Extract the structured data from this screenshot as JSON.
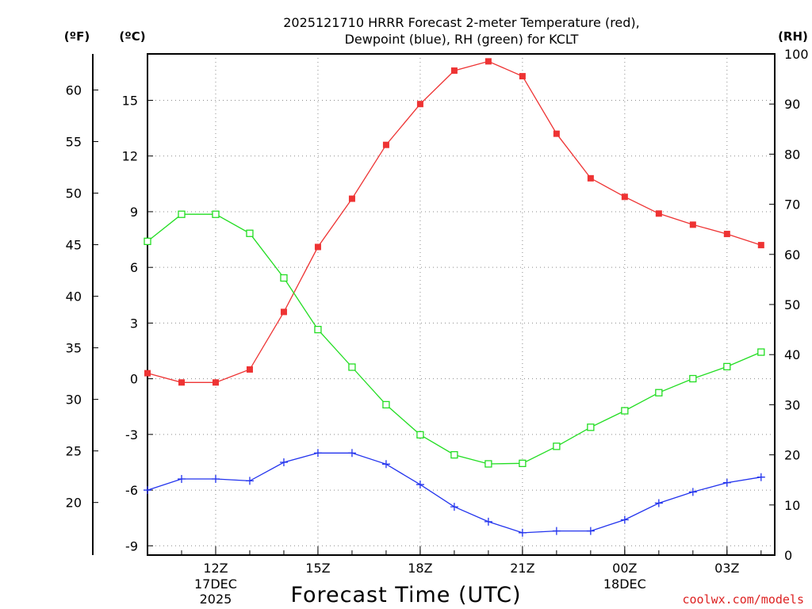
{
  "chart_data": {
    "type": "line",
    "title_line1": "2025121710 HRRR Forecast 2-meter Temperature (red),",
    "title_line2": "Dewpoint (blue), RH (green) for KCLT",
    "xlabel": "Forecast Time (UTC)",
    "credit": "coolwx.com/models",
    "left_outer_unit_label": "(ºF)",
    "left_inner_unit_label": "(ºC)",
    "right_unit_label": "(RH)",
    "x_hours": [
      10,
      11,
      12,
      13,
      14,
      15,
      16,
      17,
      18,
      19,
      20,
      21,
      22,
      23,
      24,
      25,
      26,
      27,
      28
    ],
    "x_ticks": [
      {
        "hour": 12,
        "label": "12Z",
        "sub1": "17DEC",
        "sub2": "2025"
      },
      {
        "hour": 15,
        "label": "15Z",
        "sub1": "",
        "sub2": ""
      },
      {
        "hour": 18,
        "label": "18Z",
        "sub1": "",
        "sub2": ""
      },
      {
        "hour": 21,
        "label": "21Z",
        "sub1": "",
        "sub2": ""
      },
      {
        "hour": 24,
        "label": "00Z",
        "sub1": "18DEC",
        "sub2": ""
      },
      {
        "hour": 27,
        "label": "03Z",
        "sub1": "",
        "sub2": ""
      }
    ],
    "x_range": [
      10,
      28.4
    ],
    "celsius_range": [
      -9.5,
      17.5
    ],
    "celsius_ticks": [
      "-9",
      "-6",
      "-3",
      "0",
      "3",
      "6",
      "9",
      "12",
      "15"
    ],
    "fahrenheit_ticks": [
      "20",
      "25",
      "30",
      "35",
      "40",
      "45",
      "50",
      "55",
      "60"
    ],
    "rh_range": [
      0,
      100
    ],
    "rh_ticks": [
      "0",
      "10",
      "20",
      "30",
      "40",
      "50",
      "60",
      "70",
      "80",
      "90",
      "100"
    ],
    "grid": true,
    "series": [
      {
        "name": "Temperature",
        "unit": "C",
        "color": "#ee3333",
        "marker": "filled-square",
        "values": [
          0.3,
          -0.2,
          -0.2,
          0.5,
          3.6,
          7.1,
          9.7,
          12.6,
          14.8,
          16.6,
          17.1,
          16.3,
          13.2,
          10.8,
          9.8,
          8.9,
          8.3,
          7.8,
          7.2
        ]
      },
      {
        "name": "Dewpoint",
        "unit": "C",
        "color": "#2233ee",
        "marker": "plus",
        "values": [
          -6.0,
          -5.4,
          -5.4,
          -5.5,
          -4.5,
          -4.0,
          -4.0,
          -4.6,
          -5.7,
          -6.9,
          -7.7,
          -8.3,
          -8.2,
          -8.2,
          -7.6,
          -6.7,
          -6.1,
          -5.6,
          -5.3
        ]
      },
      {
        "name": "RH",
        "unit": "%",
        "color": "#22dd22",
        "marker": "open-square",
        "values": [
          62.6,
          68.0,
          68.0,
          64.2,
          55.3,
          45.0,
          37.5,
          30.0,
          24.0,
          20.0,
          18.2,
          18.3,
          21.7,
          25.5,
          28.8,
          32.4,
          35.2,
          37.6,
          40.5
        ]
      }
    ]
  }
}
